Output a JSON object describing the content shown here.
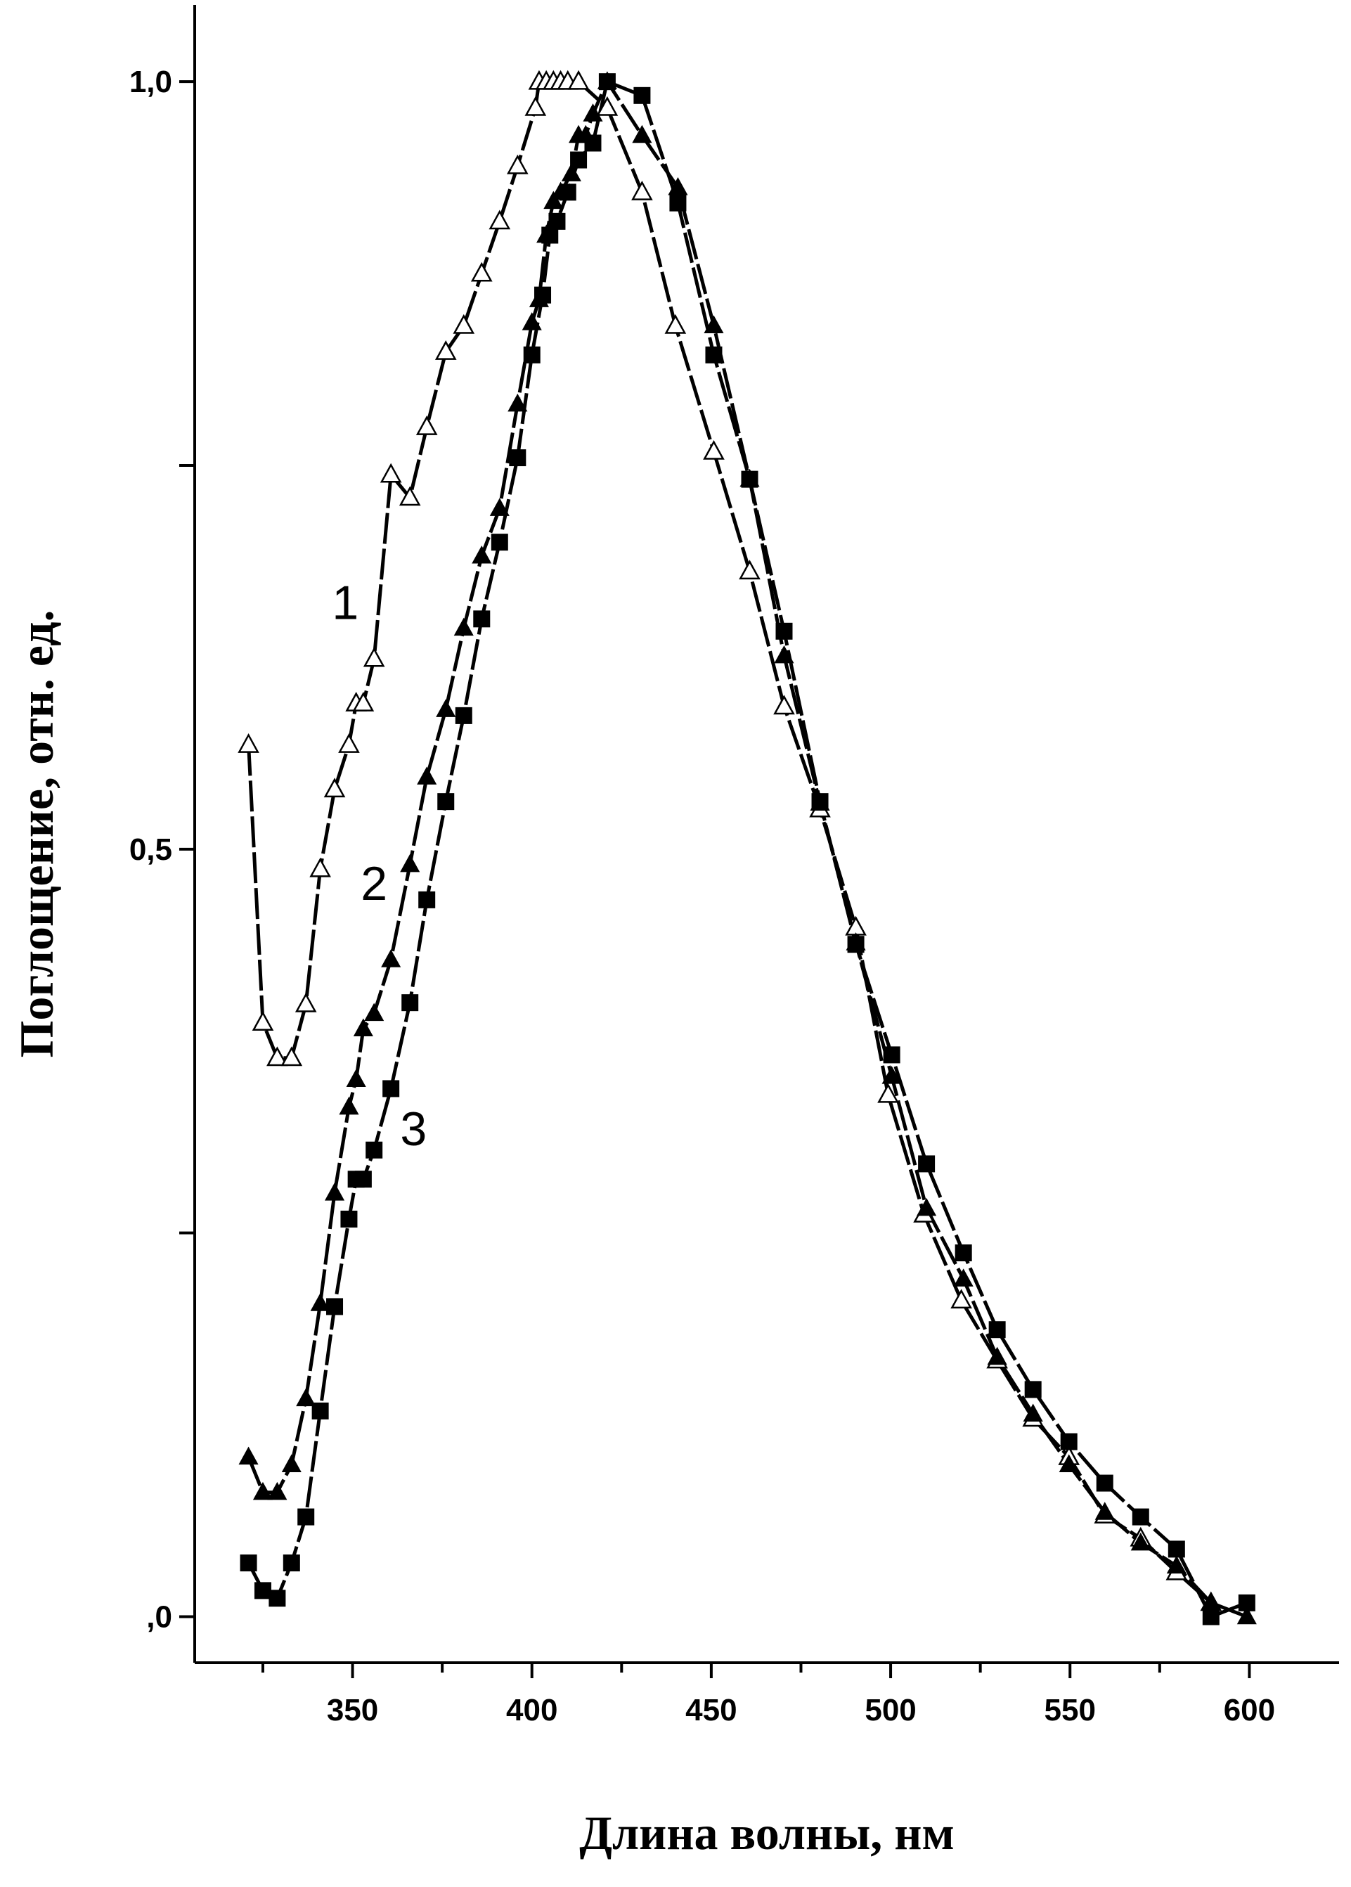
{
  "chart_data": {
    "type": "line",
    "x_label": "Длина волны, нм",
    "y_label": "Поглощение, отн. ед.",
    "xlim": [
      306,
      625
    ],
    "ylim": [
      -0.03,
      1.05
    ],
    "xticks": [
      350,
      400,
      450,
      500,
      550,
      600
    ],
    "xticks_minor": [
      325,
      375,
      425,
      475,
      525,
      575
    ],
    "yticks": [
      {
        "value": 0,
        "label": ",0"
      },
      {
        "value": 0.5,
        "label": "0,5"
      },
      {
        "value": 1.0,
        "label": "1,0"
      }
    ],
    "yticks_minor": [
      0.25,
      0.75
    ],
    "grid": false,
    "annotations": [
      {
        "text": "1",
        "x": 348,
        "y": 0.65
      },
      {
        "text": "2",
        "x": 356,
        "y": 0.467
      },
      {
        "text": "3",
        "x": 367,
        "y": 0.307
      }
    ],
    "series": [
      {
        "name": "1",
        "color": "#000000",
        "marker": "triangle-open",
        "x": [
          321,
          325,
          329,
          333,
          337,
          341,
          345,
          349,
          351,
          353,
          356,
          360.7,
          366,
          370.7,
          376,
          381,
          386,
          391,
          396,
          401,
          402,
          404,
          406,
          408,
          410,
          413,
          421,
          430.7,
          440,
          450.7,
          460.7,
          470.3,
          480.3,
          490.3,
          499.3,
          509.3,
          519.7,
          529.7,
          539.7,
          549.7,
          559.7,
          569.7,
          579.7,
          589.3
        ],
        "values": [
          0.568,
          0.387,
          0.364,
          0.364,
          0.399,
          0.487,
          0.539,
          0.568,
          0.595,
          0.595,
          0.624,
          0.744,
          0.729,
          0.775,
          0.824,
          0.841,
          0.875,
          0.909,
          0.945,
          0.983,
          1.0,
          1.0,
          1.0,
          1.0,
          1.0,
          1.0,
          0.983,
          0.928,
          0.841,
          0.759,
          0.681,
          0.593,
          0.526,
          0.449,
          0.34,
          0.262,
          0.206,
          0.167,
          0.129,
          0.104,
          0.066,
          0.051,
          0.029,
          0.009
        ]
      },
      {
        "name": "2",
        "color": "#000000",
        "marker": "triangle",
        "x": [
          321,
          325,
          329,
          333,
          337,
          341,
          345,
          349,
          351,
          353,
          356,
          360.7,
          366,
          370.7,
          376,
          381,
          386,
          391,
          396,
          400,
          402,
          404,
          406,
          408,
          411,
          413,
          415,
          417,
          421,
          430.7,
          440.7,
          450.7,
          460.7,
          470.3,
          480.3,
          490.3,
          500.3,
          510,
          520.3,
          529.7,
          539.7,
          549.7,
          559.7,
          569.7,
          579.7,
          589.3,
          599.3
        ],
        "values": [
          0.104,
          0.081,
          0.081,
          0.099,
          0.142,
          0.204,
          0.276,
          0.332,
          0.35,
          0.383,
          0.393,
          0.428,
          0.49,
          0.547,
          0.591,
          0.644,
          0.691,
          0.722,
          0.79,
          0.843,
          0.858,
          0.9,
          0.922,
          0.928,
          0.94,
          0.965,
          0.965,
          0.979,
          1.0,
          0.965,
          0.931,
          0.841,
          0.741,
          0.626,
          0.53,
          0.439,
          0.352,
          0.266,
          0.22,
          0.169,
          0.132,
          0.099,
          0.068,
          0.048,
          0.033,
          0.009,
          0.0
        ]
      },
      {
        "name": "3",
        "color": "#000000",
        "marker": "square",
        "x": [
          321,
          325,
          329,
          333,
          337,
          341,
          345,
          349,
          351,
          353,
          356,
          360.7,
          366,
          370.7,
          376,
          381,
          386,
          391,
          396,
          400,
          403,
          405,
          407,
          410,
          413,
          417,
          421,
          430.7,
          440.7,
          450.7,
          460.7,
          470.3,
          480.3,
          490.3,
          500.3,
          510,
          520.3,
          529.7,
          539.7,
          549.7,
          559.7,
          569.7,
          579.7,
          589.3,
          599.3
        ],
        "values": [
          0.035,
          0.017,
          0.012,
          0.035,
          0.065,
          0.134,
          0.202,
          0.259,
          0.285,
          0.285,
          0.304,
          0.344,
          0.4,
          0.467,
          0.531,
          0.587,
          0.65,
          0.7,
          0.755,
          0.822,
          0.861,
          0.9,
          0.909,
          0.928,
          0.949,
          0.96,
          1.0,
          0.991,
          0.921,
          0.822,
          0.741,
          0.642,
          0.531,
          0.438,
          0.366,
          0.295,
          0.237,
          0.187,
          0.148,
          0.114,
          0.087,
          0.065,
          0.044,
          0.0,
          0.009
        ]
      }
    ]
  }
}
